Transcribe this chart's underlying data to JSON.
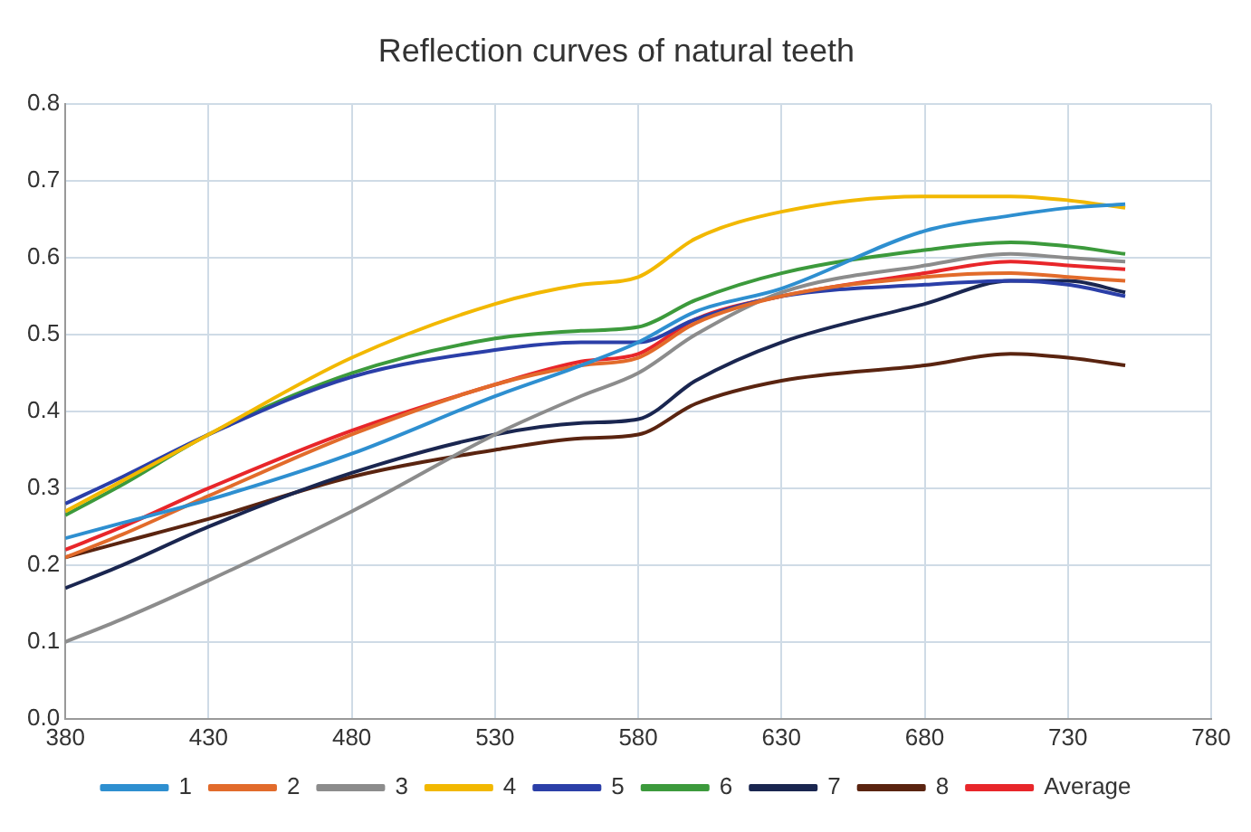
{
  "chart_data": {
    "type": "line",
    "title": "Reflection curves of natural teeth",
    "xlim": [
      380,
      780
    ],
    "xticks": [
      380,
      430,
      480,
      530,
      580,
      630,
      680,
      730,
      780
    ],
    "ylim": [
      0,
      0.8
    ],
    "yticks": [
      {
        "value": 0,
        "label": "0.0"
      },
      0.1,
      0.2,
      0.3,
      0.4,
      0.5,
      0.6,
      0.7,
      0.8
    ],
    "grid": true,
    "legend": "bottom",
    "marker": "none",
    "line_style": "solid",
    "x": [
      380,
      400,
      430,
      480,
      530,
      560,
      580,
      600,
      630,
      680,
      710,
      730,
      750
    ],
    "series": [
      {
        "name": "1",
        "color": "#2e8fd0",
        "values": [
          0.235,
          0.255,
          0.285,
          0.345,
          0.42,
          0.46,
          0.49,
          0.53,
          0.56,
          0.635,
          0.655,
          0.665,
          0.67
        ]
      },
      {
        "name": "2",
        "color": "#e26b2b",
        "values": [
          0.21,
          0.24,
          0.29,
          0.37,
          0.435,
          0.46,
          0.47,
          0.515,
          0.55,
          0.575,
          0.58,
          0.575,
          0.57
        ]
      },
      {
        "name": "3",
        "color": "#8c8c8c",
        "values": [
          0.1,
          0.13,
          0.18,
          0.27,
          0.37,
          0.42,
          0.45,
          0.5,
          0.555,
          0.59,
          0.605,
          0.6,
          0.595
        ]
      },
      {
        "name": "4",
        "color": "#f2b800",
        "values": [
          0.27,
          0.31,
          0.37,
          0.47,
          0.54,
          0.565,
          0.575,
          0.625,
          0.66,
          0.68,
          0.68,
          0.675,
          0.665
        ]
      },
      {
        "name": "5",
        "color": "#2b3fa8",
        "values": [
          0.28,
          0.315,
          0.37,
          0.445,
          0.48,
          0.49,
          0.49,
          0.52,
          0.55,
          0.565,
          0.57,
          0.565,
          0.55
        ]
      },
      {
        "name": "6",
        "color": "#3c9a3c",
        "values": [
          0.265,
          0.305,
          0.37,
          0.45,
          0.495,
          0.505,
          0.51,
          0.545,
          0.58,
          0.61,
          0.62,
          0.615,
          0.605
        ]
      },
      {
        "name": "7",
        "color": "#1a2650",
        "values": [
          0.17,
          0.2,
          0.25,
          0.32,
          0.37,
          0.385,
          0.39,
          0.44,
          0.49,
          0.54,
          0.57,
          0.57,
          0.555
        ]
      },
      {
        "name": "8",
        "color": "#5a2410",
        "values": [
          0.21,
          0.23,
          0.26,
          0.315,
          0.35,
          0.365,
          0.37,
          0.41,
          0.44,
          0.46,
          0.475,
          0.47,
          0.46
        ]
      },
      {
        "name": "Average",
        "color": "#e8262a",
        "values": [
          0.22,
          0.25,
          0.3,
          0.375,
          0.435,
          0.465,
          0.475,
          0.52,
          0.55,
          0.58,
          0.595,
          0.59,
          0.585
        ]
      }
    ]
  }
}
